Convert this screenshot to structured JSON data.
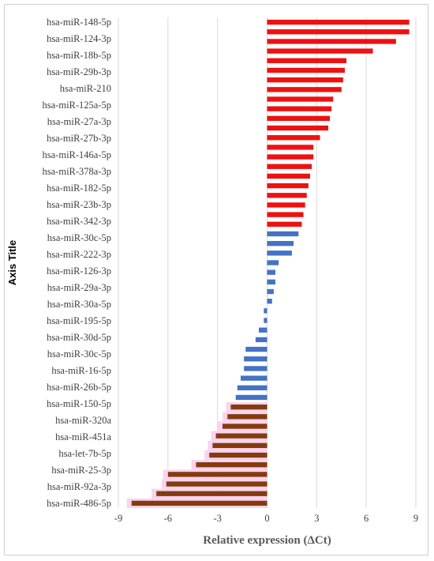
{
  "chart_data": {
    "type": "bar",
    "orientation": "horizontal",
    "xlabel": "Relative expression (ΔCt)",
    "ylabel": "Axis Title",
    "xlim": [
      -9,
      9
    ],
    "xticks": [
      -9,
      -6,
      -3,
      0,
      3,
      6,
      9
    ],
    "grid": "vertical",
    "labeled_categories": [
      "hsa-miR-148-5p",
      "hsa-miR-124-3p",
      "hsa-miR-18b-5p",
      "hsa-miR-29b-3p",
      "hsa-miR-210",
      "hsa-miR-125a-5p",
      "hsa-miR-27a-3p",
      "hsa-miR-27b-3p",
      "hsa-miR-146a-5p",
      "hsa-miR-378a-3p",
      "hsa-miR-182-5p",
      "hsa-miR-23b-3p",
      "hsa-miR-342-3p",
      "hsa-miR-30c-5p",
      "hsa-miR-222-3p",
      "hsa-miR-126-3p",
      "hsa-miR-29a-3p",
      "hsa-miR-30a-5p",
      "hsa-miR-195-5p",
      "hsa-miR-30d-5p",
      "hsa-miR-30c-5p",
      "hsa-miR-16-5p",
      "hsa-miR-26b-5p",
      "hsa-miR-150-5p",
      "hsa-miR-320a",
      "hsa-miR-451a",
      "hsa-let-7b-5p",
      "hsa-miR-25-3p",
      "hsa-miR-92a-3p",
      "hsa-miR-486-5p"
    ],
    "values": [
      8.6,
      8.6,
      7.8,
      6.4,
      4.8,
      4.7,
      4.6,
      4.5,
      4.0,
      3.9,
      3.8,
      3.7,
      3.2,
      2.8,
      2.8,
      2.7,
      2.6,
      2.5,
      2.4,
      2.3,
      2.2,
      2.1,
      1.9,
      1.6,
      1.5,
      0.7,
      0.5,
      0.5,
      0.4,
      0.3,
      -0.2,
      -0.2,
      -0.5,
      -0.7,
      -1.3,
      -1.4,
      -1.4,
      -1.6,
      -1.8,
      -1.9,
      -2.2,
      -2.4,
      -2.7,
      -3.1,
      -3.3,
      -3.5,
      -4.3,
      -6.0,
      -6.1,
      -6.7,
      -8.2
    ],
    "colors": {
      "up": "#ee1111",
      "moderate": "#4472c4",
      "down": "#843c0c",
      "down_halo": "#f9d3ef",
      "grid": "#d9d9d9"
    }
  }
}
